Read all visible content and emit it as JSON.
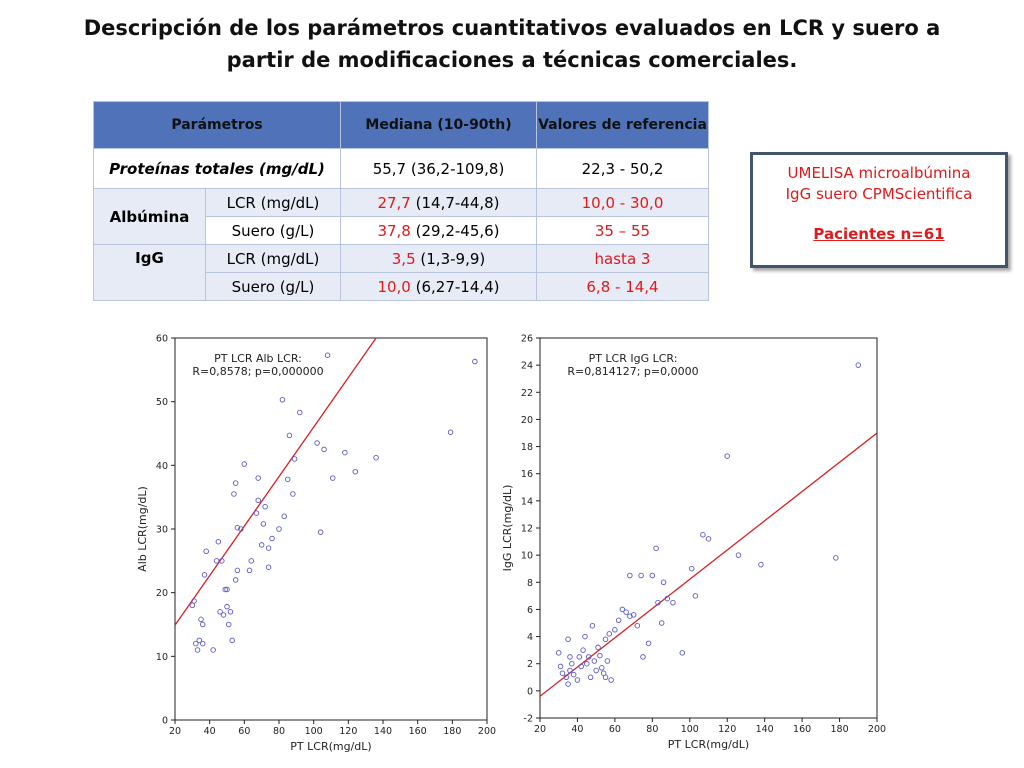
{
  "title_line1": "Descripción de los parámetros cuantitativos evaluados en LCR y suero a",
  "title_line2": "partir de modificaciones a técnicas comerciales.",
  "table": {
    "headers": [
      "Parámetros",
      "Mediana (10-90th)",
      "Valores de referencia"
    ],
    "proteinas": {
      "label": "Proteínas totales (mg/dL)",
      "mediana": "55,7 (36,2-109,8)",
      "referencia": "22,3 - 50,2"
    },
    "albumina": {
      "label": "Albúmina",
      "lcr": {
        "sample": "LCR (mg/dL)",
        "median": "27,7",
        "range": "(14,7-44,8)",
        "referencia": "10,0 - 30,0"
      },
      "suero": {
        "sample": "Suero (g/L)",
        "median": "37,8",
        "range": "(29,2-45,6)",
        "referencia": "35 – 55"
      }
    },
    "igg": {
      "label": "IgG",
      "lcr": {
        "sample": "LCR (mg/dL)",
        "median": "3,5",
        "range": "(1,3-9,9)",
        "referencia": "hasta 3"
      },
      "suero": {
        "sample": "Suero (g/L)",
        "median": "10,0",
        "range": "(6,27-14,4)",
        "referencia": "6,8 - 14,4"
      }
    }
  },
  "info_box": {
    "line1": "UMELISA microalbúmina",
    "line2": "IgG suero CPMScientifica",
    "line3": "Pacientes n=61"
  },
  "colors": {
    "header_bg": "#4f72b8",
    "highlight_red": "#e0191b",
    "point_color": "#5a5ac8",
    "fit_line": "#d62020"
  },
  "chart_data": [
    {
      "type": "scatter",
      "xlabel": "PT LCR(mg/dL)",
      "ylabel": "Alb LCR(mg/dL)",
      "annotation_line1": "PT LCR Alb LCR:",
      "annotation_line2": "R=0,8578; p=0,000000",
      "xlim": [
        20,
        200
      ],
      "ylim": [
        0,
        60
      ],
      "xticks": [
        20,
        40,
        60,
        80,
        100,
        120,
        140,
        160,
        180,
        200
      ],
      "yticks": [
        0,
        10,
        20,
        30,
        40,
        50,
        60
      ],
      "fit_line": {
        "x": [
          20,
          136
        ],
        "y": [
          14.9,
          60
        ]
      },
      "points": [
        [
          31,
          18.7
        ],
        [
          30,
          18.0
        ],
        [
          32,
          12.0
        ],
        [
          34,
          12.5
        ],
        [
          33,
          11.0
        ],
        [
          36,
          12.0
        ],
        [
          35,
          15.8
        ],
        [
          36,
          15.0
        ],
        [
          37,
          22.8
        ],
        [
          38,
          26.5
        ],
        [
          42,
          11.0
        ],
        [
          44,
          25.0
        ],
        [
          45,
          28.0
        ],
        [
          46,
          17.0
        ],
        [
          47,
          25.0
        ],
        [
          48,
          16.5
        ],
        [
          49,
          20.5
        ],
        [
          50,
          17.8
        ],
        [
          50,
          20.5
        ],
        [
          51,
          15.0
        ],
        [
          52,
          17.0
        ],
        [
          53,
          12.5
        ],
        [
          54,
          35.5
        ],
        [
          55,
          37.2
        ],
        [
          55,
          22.0
        ],
        [
          56,
          23.5
        ],
        [
          56,
          30.2
        ],
        [
          58,
          30.0
        ],
        [
          60,
          40.2
        ],
        [
          63,
          23.5
        ],
        [
          64,
          25.0
        ],
        [
          67,
          32.5
        ],
        [
          68,
          34.5
        ],
        [
          68,
          38.0
        ],
        [
          70,
          27.5
        ],
        [
          71,
          30.8
        ],
        [
          72,
          33.5
        ],
        [
          74,
          24.0
        ],
        [
          74,
          27.0
        ],
        [
          76,
          28.5
        ],
        [
          80,
          30.0
        ],
        [
          82,
          50.3
        ],
        [
          83,
          32.0
        ],
        [
          85,
          37.8
        ],
        [
          86,
          44.7
        ],
        [
          88,
          35.5
        ],
        [
          89,
          41.0
        ],
        [
          92,
          48.3
        ],
        [
          102,
          43.5
        ],
        [
          104,
          29.5
        ],
        [
          106,
          42.5
        ],
        [
          108,
          57.3
        ],
        [
          111,
          38.0
        ],
        [
          118,
          42.0
        ],
        [
          124,
          39.0
        ],
        [
          136,
          41.2
        ],
        [
          179,
          45.2
        ],
        [
          193,
          56.3
        ]
      ]
    },
    {
      "type": "scatter",
      "xlabel": "PT LCR(mg/dL)",
      "ylabel": "IgG LCR(mg/dL)",
      "annotation_line1": "PT LCR IgG LCR:",
      "annotation_line2": "R=0,814127; p=0,0000",
      "xlim": [
        20,
        200
      ],
      "ylim": [
        -2,
        26
      ],
      "xticks": [
        20,
        40,
        60,
        80,
        100,
        120,
        140,
        160,
        180,
        200
      ],
      "yticks": [
        -2,
        0,
        2,
        4,
        6,
        8,
        10,
        12,
        14,
        16,
        18,
        20,
        22,
        24,
        26
      ],
      "fit_line": {
        "x": [
          20,
          200
        ],
        "y": [
          -0.4,
          19.0
        ]
      },
      "points": [
        [
          30,
          2.8
        ],
        [
          31,
          1.8
        ],
        [
          32,
          1.3
        ],
        [
          34,
          1.0
        ],
        [
          35,
          3.8
        ],
        [
          35,
          0.5
        ],
        [
          36,
          2.5
        ],
        [
          36,
          1.5
        ],
        [
          37,
          2.0
        ],
        [
          38,
          1.2
        ],
        [
          40,
          0.8
        ],
        [
          41,
          2.5
        ],
        [
          42,
          1.8
        ],
        [
          43,
          3.0
        ],
        [
          44,
          4.0
        ],
        [
          45,
          2.0
        ],
        [
          46,
          2.5
        ],
        [
          47,
          1.0
        ],
        [
          48,
          4.8
        ],
        [
          49,
          2.2
        ],
        [
          50,
          1.5
        ],
        [
          51,
          3.2
        ],
        [
          52,
          2.6
        ],
        [
          53,
          1.7
        ],
        [
          54,
          1.3
        ],
        [
          55,
          3.8
        ],
        [
          55,
          1.0
        ],
        [
          56,
          2.2
        ],
        [
          57,
          4.2
        ],
        [
          58,
          0.8
        ],
        [
          60,
          4.5
        ],
        [
          62,
          5.2
        ],
        [
          64,
          6.0
        ],
        [
          66,
          5.8
        ],
        [
          68,
          5.5
        ],
        [
          68,
          8.5
        ],
        [
          70,
          5.6
        ],
        [
          72,
          4.8
        ],
        [
          74,
          8.5
        ],
        [
          75,
          2.5
        ],
        [
          78,
          3.5
        ],
        [
          80,
          8.5
        ],
        [
          82,
          10.5
        ],
        [
          83,
          6.5
        ],
        [
          85,
          5.0
        ],
        [
          86,
          8.0
        ],
        [
          88,
          6.8
        ],
        [
          91,
          6.5
        ],
        [
          96,
          2.8
        ],
        [
          101,
          9.0
        ],
        [
          103,
          7.0
        ],
        [
          107,
          11.5
        ],
        [
          110,
          11.2
        ],
        [
          120,
          17.3
        ],
        [
          126,
          10.0
        ],
        [
          138,
          9.3
        ],
        [
          178,
          9.8
        ],
        [
          190,
          24.0
        ]
      ]
    }
  ]
}
